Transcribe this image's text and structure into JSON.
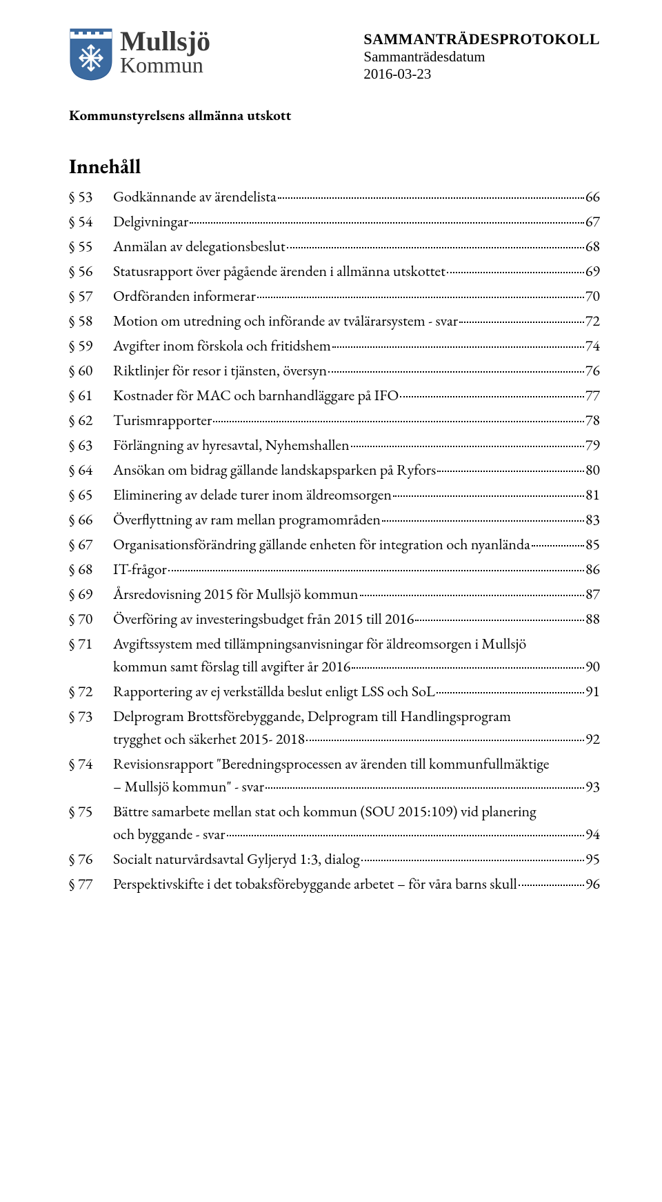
{
  "brand": {
    "top": "Mullsjö",
    "bottom": "Kommun",
    "shield_colors": {
      "outline": "#3b6aa0",
      "fill": "#3b6aa0",
      "inner_bg": "#3b6aa0",
      "accent": "#ffffff"
    }
  },
  "doc": {
    "title": "SAMMANTRÄDESPROTOKOLL",
    "subtitle": "Sammanträdesdatum",
    "date": "2016-03-23"
  },
  "committee": "Kommunstyrelsens allmänna utskott",
  "content_heading": "Innehåll",
  "section_symbol": "§",
  "entries": [
    {
      "num": "53",
      "lines": [
        "Godkännande av ärendelista"
      ],
      "page": "66"
    },
    {
      "num": "54",
      "lines": [
        "Delgivningar"
      ],
      "page": "67"
    },
    {
      "num": "55",
      "lines": [
        "Anmälan av delegationsbeslut"
      ],
      "page": "68"
    },
    {
      "num": "56",
      "lines": [
        "Statusrapport över pågående ärenden i allmänna  utskottet"
      ],
      "page": "69"
    },
    {
      "num": "57",
      "lines": [
        "Ordföranden informerar"
      ],
      "page": "70"
    },
    {
      "num": "58",
      "lines": [
        "Motion om utredning och införande av  tvålärarsystem - svar"
      ],
      "page": "72"
    },
    {
      "num": "59",
      "lines": [
        "Avgifter inom förskola och fritidshem"
      ],
      "page": "74"
    },
    {
      "num": "60",
      "lines": [
        "Riktlinjer för resor i tjänsten, översyn"
      ],
      "page": "76"
    },
    {
      "num": "61",
      "lines": [
        "Kostnader för MAC och barnhandläggare på IFO"
      ],
      "page": "77"
    },
    {
      "num": "62",
      "lines": [
        "Turismrapporter"
      ],
      "page": "78"
    },
    {
      "num": "63",
      "lines": [
        "Förlängning av hyresavtal, Nyhemshallen"
      ],
      "page": "79"
    },
    {
      "num": "64",
      "lines": [
        "Ansökan om bidrag gällande landskapsparken  på Ryfors"
      ],
      "page": "80"
    },
    {
      "num": "65",
      "lines": [
        "Eliminering av delade turer inom äldreomsorgen"
      ],
      "page": "81"
    },
    {
      "num": "66",
      "lines": [
        "Överflyttning av ram mellan programområden"
      ],
      "page": "83"
    },
    {
      "num": "67",
      "lines": [
        "Organisationsförändring gällande enheten för  integration och nyanlända"
      ],
      "page": "85"
    },
    {
      "num": "68",
      "lines": [
        "IT-frågor"
      ],
      "page": "86"
    },
    {
      "num": "69",
      "lines": [
        "Årsredovisning 2015 för Mullsjö kommun"
      ],
      "page": "87"
    },
    {
      "num": "70",
      "lines": [
        "Överföring av investeringsbudget från 2015 till  2016"
      ],
      "page": "88"
    },
    {
      "num": "71",
      "lines": [
        "Avgiftssystem med tillämpningsanvisningar för  äldreomsorgen i Mullsjö",
        "kommun samt förslag till  avgifter år 2016"
      ],
      "page": "90"
    },
    {
      "num": "72",
      "lines": [
        "Rapportering av ej verkställda beslut enligt LSS  och SoL"
      ],
      "page": "91"
    },
    {
      "num": "73",
      "lines": [
        "Delprogram Brottsförebyggande, Delprogram till  Handlingsprogram",
        "trygghet och säkerhet 2015- 2018"
      ],
      "page": "92"
    },
    {
      "num": "74",
      "lines": [
        "Revisionsrapport \"Beredningsprocessen av  ärenden till kommunfullmäktige",
        "– Mullsjö  kommun\" - svar"
      ],
      "page": "93"
    },
    {
      "num": "75",
      "lines": [
        "Bättre samarbete mellan stat och kommun (SOU  2015:109) vid planering",
        "och byggande - svar"
      ],
      "page": "94"
    },
    {
      "num": "76",
      "lines": [
        "Socialt naturvårdsavtal Gyljeryd 1:3, dialog"
      ],
      "page": "95"
    },
    {
      "num": "77",
      "lines": [
        "Perspektivskifte i det tobaksförebyggande  arbetet – för våra barns skull"
      ],
      "page": "96"
    }
  ]
}
